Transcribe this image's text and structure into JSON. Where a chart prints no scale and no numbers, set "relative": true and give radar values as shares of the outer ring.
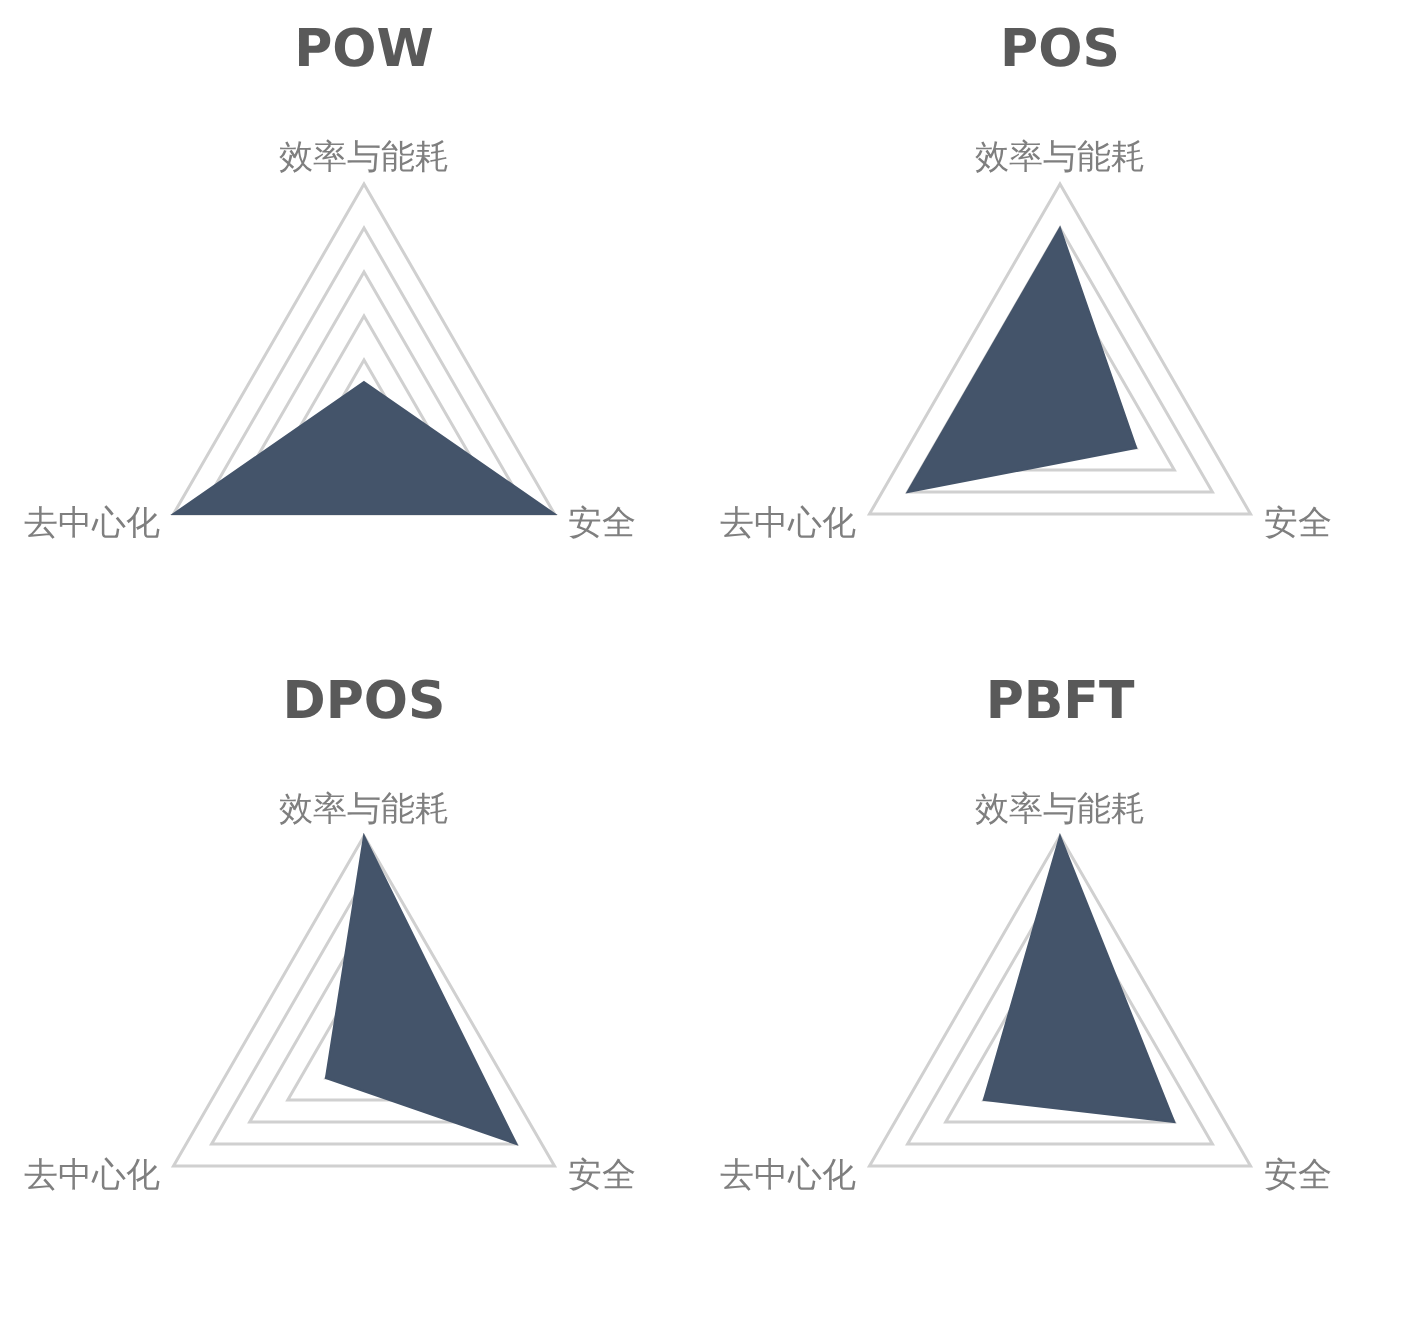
{
  "chart_data": [
    {
      "type": "radar",
      "title": "POW",
      "categories": [
        "效率与能耗",
        "安全",
        "去中心化"
      ],
      "relative": true,
      "grid": true,
      "series": [
        {
          "color": "#44546a",
          "values": [
            0.1,
            1,
            1
          ]
        }
      ]
    },
    {
      "type": "radar",
      "title": "POS",
      "categories": [
        "效率与能耗",
        "安全",
        "去中心化"
      ],
      "relative": true,
      "grid": true,
      "series": [
        {
          "color": "#44546a",
          "values": [
            0.8,
            0.4,
            0.8
          ]
        }
      ]
    },
    {
      "type": "radar",
      "title": "DPOS",
      "categories": [
        "效率与能耗",
        "安全",
        "去中心化"
      ],
      "relative": true,
      "grid": true,
      "series": [
        {
          "color": "#44546a",
          "values": [
            1,
            0.8,
            0.2
          ]
        }
      ]
    },
    {
      "type": "radar",
      "title": "PBFT",
      "categories": [
        "效率与能耗",
        "安全",
        "去中心化"
      ],
      "relative": true,
      "grid": true,
      "series": [
        {
          "color": "#44546a",
          "values": [
            1,
            0.6,
            0.4
          ]
        }
      ]
    }
  ]
}
